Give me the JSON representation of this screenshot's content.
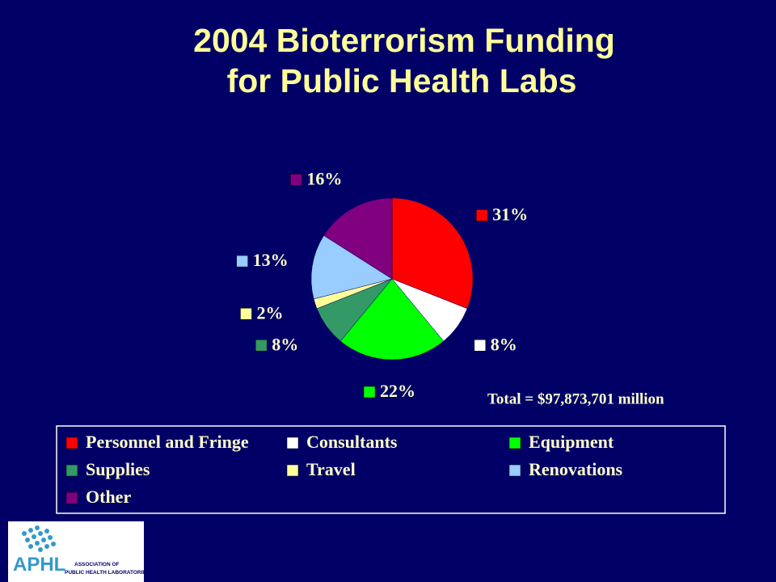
{
  "chart_data": {
    "type": "pie",
    "title": "2004 Bioterrorism Funding",
    "subtitle": "for Public Health Labs",
    "categories": [
      "Personnel and Fringe",
      "Consultants",
      "Equipment",
      "Supplies",
      "Travel",
      "Renovations",
      "Other"
    ],
    "values": [
      31,
      8,
      22,
      8,
      2,
      13,
      16
    ],
    "value_labels": [
      "31%",
      "8%",
      "22%",
      "8%",
      "2%",
      "13%",
      "16%"
    ],
    "colors": [
      "#ff0000",
      "#ffffff",
      "#00ff00",
      "#339966",
      "#ffff99",
      "#99ccff",
      "#800080"
    ],
    "annotation": "Total = $97,873,701 million",
    "legend": "bottom"
  },
  "logo": {
    "text": "APHL",
    "caption_line1": "ASSOCIATION OF",
    "caption_line2": "PUBLIC HEALTH LABORATORIES"
  }
}
